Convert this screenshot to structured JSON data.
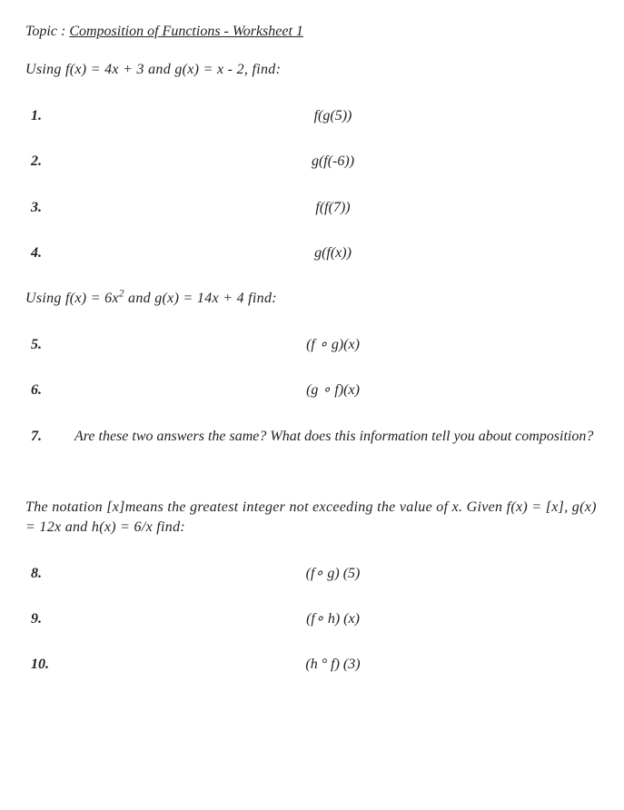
{
  "topic_label": "Topic : ",
  "topic_title": "Composition of Functions - Worksheet 1",
  "section1_instr": "Using f(x) = 4x + 3 and g(x) = x - 2, find:",
  "problems1": [
    {
      "num": "1.",
      "body": "f(g(5))"
    },
    {
      "num": "2.",
      "body": "g(f(-6))"
    },
    {
      "num": "3.",
      "body": "f(f(7))"
    },
    {
      "num": "4.",
      "body": "g(f(x))"
    }
  ],
  "section2_instr_prefix": "Using f(x) = 6x",
  "section2_instr_exp": "2",
  "section2_instr_suffix": " and g(x) = 14x + 4 find:",
  "problems2": [
    {
      "num": "5.",
      "body": "(f ∘ g)(x)"
    },
    {
      "num": "6.",
      "body": "(g ∘ f)(x)"
    }
  ],
  "problem7": {
    "num": "7.",
    "body": "Are these two answers the same? What does this information tell you about composition?"
  },
  "section3_instr": "The notation [x]means the greatest integer not exceeding the value of x. Given f(x) = [x], g(x) = 12x and h(x) = 6/x find:",
  "problems3": [
    {
      "num": "8.",
      "body": "(f∘ g) (5)"
    },
    {
      "num": "9.",
      "body": "(f∘ h) (x)"
    },
    {
      "num": "10.",
      "body": "(h ° f) (3)"
    }
  ]
}
